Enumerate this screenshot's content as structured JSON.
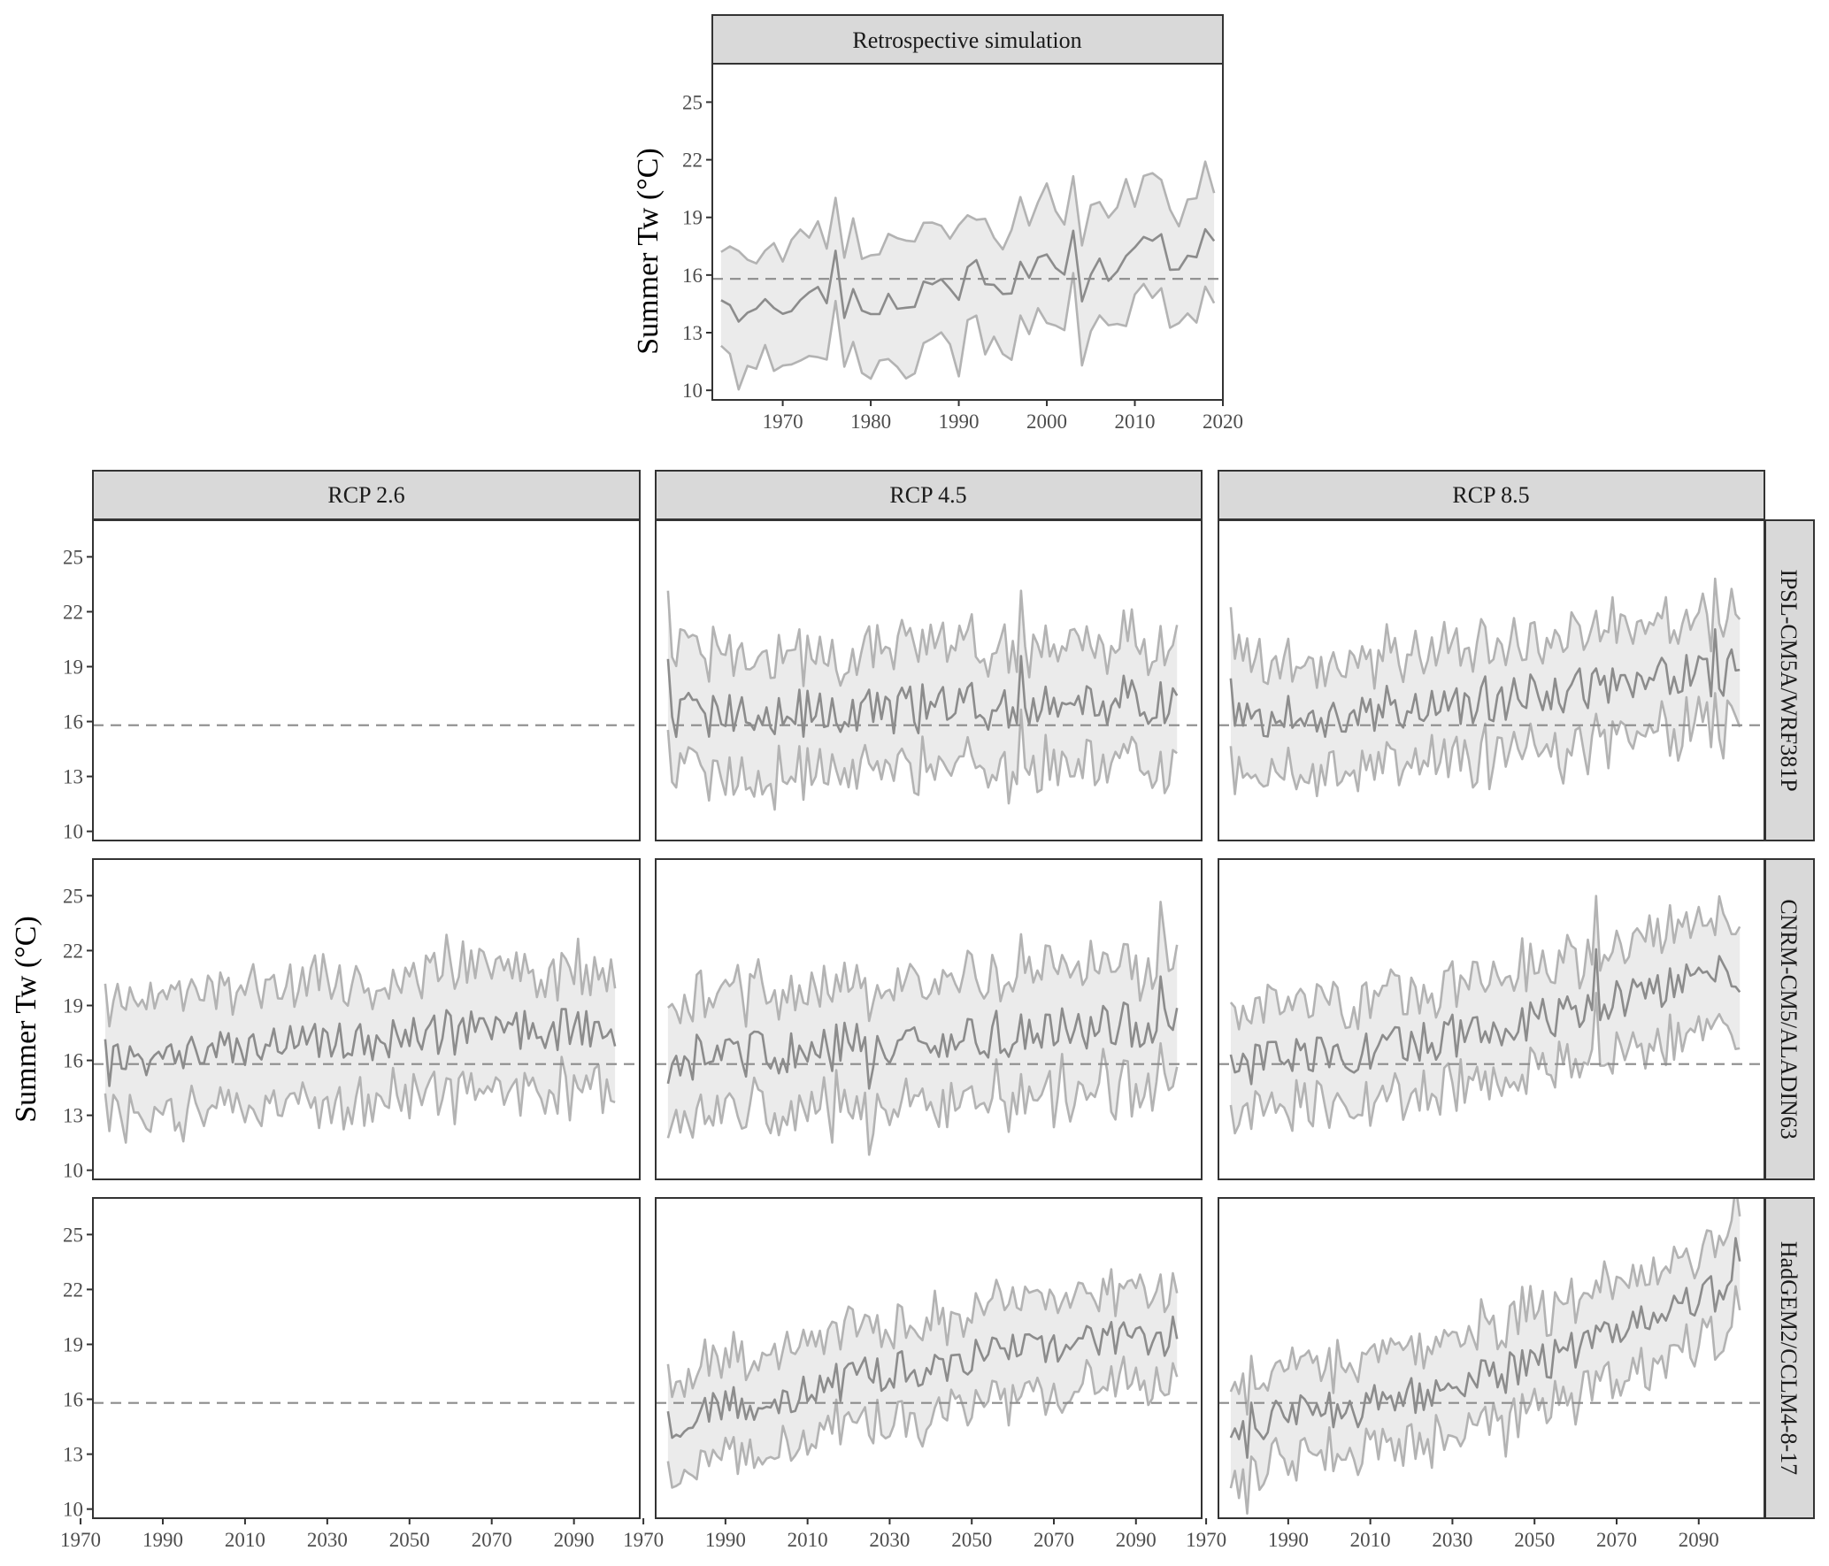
{
  "colors": {
    "ribbon_fill": "#ebebeb",
    "bound_line": "#b3b3b3",
    "mean_line": "#8c8c8c",
    "reference_line": "#8c8c8c",
    "strip_fill": "#d9d9d9",
    "panel_border": "#333333"
  },
  "chart_data": [
    {
      "type": "area",
      "panel": "Retrospective simulation",
      "title": "Retrospective simulation",
      "xlabel": "",
      "ylabel": "Summer Tw (°C)",
      "xlim": [
        1962,
        2020
      ],
      "ylim": [
        9.5,
        27
      ],
      "xticks": [
        1970,
        1980,
        1990,
        2000,
        2010,
        2020
      ],
      "yticks": [
        10,
        13,
        16,
        19,
        22,
        25
      ],
      "grid": false,
      "reference_line": 15.8,
      "x_start": 1963,
      "x_end": 2019,
      "mean_start": 13.8,
      "mean_end": 17.5,
      "mean_curve": 0,
      "spread": 3.0,
      "amp": 1.1,
      "seed": 11,
      "spikes": [
        [
          1976,
          2.6
        ],
        [
          1977,
          -1.8
        ],
        [
          2003,
          2.4
        ],
        [
          2004,
          -1.2
        ]
      ]
    },
    {
      "type": "area",
      "panel": "RCP 2.6",
      "title": "RCP 2.6",
      "row_label": "IPSL-CM5A/WRF381P",
      "xlabel": "",
      "ylabel": "",
      "xlim": [
        1973,
        2106
      ],
      "ylim": [
        9.5,
        27
      ],
      "xticks": [
        1970,
        1990,
        2010,
        2030,
        2050,
        2070,
        2090
      ],
      "yticks": [
        10,
        13,
        16,
        19,
        22,
        25
      ],
      "grid": false,
      "reference_line": 15.8,
      "empty": true
    },
    {
      "type": "area",
      "panel": "RCP 4.5",
      "title": "RCP 4.5",
      "row_label": "IPSL-CM5A/WRF381P",
      "xlim": [
        1973,
        2106
      ],
      "ylim": [
        9.5,
        27
      ],
      "xticks": [
        1970,
        1990,
        2010,
        2030,
        2050,
        2070,
        2090
      ],
      "yticks": [
        10,
        13,
        16,
        19,
        22,
        25
      ],
      "grid": false,
      "reference_line": 15.8,
      "x_start": 1976,
      "x_end": 2100,
      "mean_start": 16.2,
      "mean_end": 17.3,
      "mean_curve": 0,
      "spread": 3.3,
      "amp": 1.4,
      "seed": 23,
      "spikes": [
        [
          1976,
          2.0
        ],
        [
          2043,
          2.0
        ],
        [
          2062,
          1.5
        ]
      ]
    },
    {
      "type": "area",
      "panel": "RCP 8.5",
      "title": "RCP 8.5",
      "row_label": "IPSL-CM5A/WRF381P",
      "xlim": [
        1973,
        2106
      ],
      "ylim": [
        9.5,
        27
      ],
      "xticks": [
        1970,
        1990,
        2010,
        2030,
        2050,
        2070,
        2090
      ],
      "yticks": [
        10,
        13,
        16,
        19,
        22,
        25
      ],
      "grid": false,
      "reference_line": 15.8,
      "x_start": 1976,
      "x_end": 2100,
      "mean_start": 16.0,
      "mean_end": 18.8,
      "mean_curve": 0.3,
      "spread": 3.0,
      "amp": 1.3,
      "seed": 37,
      "spikes": [
        [
          1976,
          2.0
        ],
        [
          2094,
          2.6
        ],
        [
          2095,
          -1.5
        ]
      ]
    },
    {
      "type": "area",
      "panel": "RCP 2.6",
      "row_label": "CNRM-CM5/ALADIN63",
      "xlim": [
        1973,
        2106
      ],
      "ylim": [
        9.5,
        27
      ],
      "xticks": [
        1970,
        1990,
        2010,
        2030,
        2050,
        2070,
        2090
      ],
      "yticks": [
        10,
        13,
        16,
        19,
        22,
        25
      ],
      "grid": false,
      "reference_line": 15.8,
      "x_start": 1976,
      "x_end": 2100,
      "mean_start": 16.0,
      "mean_end": 17.8,
      "mean_curve": -0.5,
      "spread": 3.2,
      "amp": 1.2,
      "seed": 41,
      "spikes": [
        [
          1977,
          -1.8
        ],
        [
          2059,
          2.0
        ]
      ]
    },
    {
      "type": "area",
      "panel": "RCP 4.5",
      "row_label": "CNRM-CM5/ALADIN63",
      "xlim": [
        1973,
        2106
      ],
      "ylim": [
        9.5,
        27
      ],
      "xticks": [
        1970,
        1990,
        2010,
        2030,
        2050,
        2070,
        2090
      ],
      "yticks": [
        10,
        13,
        16,
        19,
        22,
        25
      ],
      "grid": false,
      "reference_line": 15.8,
      "x_start": 1976,
      "x_end": 2100,
      "mean_start": 16.0,
      "mean_end": 18.2,
      "mean_curve": 0,
      "spread": 3.3,
      "amp": 1.3,
      "seed": 53,
      "spikes": [
        [
          2025,
          -2.5
        ],
        [
          2096,
          2.4
        ]
      ]
    },
    {
      "type": "area",
      "panel": "RCP 8.5",
      "row_label": "CNRM-CM5/ALADIN63",
      "xlim": [
        1973,
        2106
      ],
      "ylim": [
        9.5,
        27
      ],
      "xticks": [
        1970,
        1990,
        2010,
        2030,
        2050,
        2070,
        2090
      ],
      "yticks": [
        10,
        13,
        16,
        19,
        22,
        25
      ],
      "grid": false,
      "reference_line": 15.8,
      "x_start": 1976,
      "x_end": 2100,
      "mean_start": 15.8,
      "mean_end": 21.0,
      "mean_curve": 0.6,
      "spread": 2.9,
      "amp": 1.2,
      "seed": 67,
      "spikes": [
        [
          2065,
          3.0
        ],
        [
          2066,
          -1.6
        ],
        [
          2100,
          -1.8
        ]
      ]
    },
    {
      "type": "area",
      "panel": "RCP 2.6",
      "title": "",
      "row_label": "HadGEM2/CCLM4-8-17",
      "xlim": [
        1973,
        2106
      ],
      "ylim": [
        9.5,
        27
      ],
      "xticks": [
        1970,
        1990,
        2010,
        2030,
        2050,
        2070,
        2090
      ],
      "yticks": [
        10,
        13,
        16,
        19,
        22,
        25
      ],
      "grid": false,
      "reference_line": 15.8,
      "empty": true
    },
    {
      "type": "area",
      "panel": "RCP 4.5",
      "row_label": "HadGEM2/CCLM4-8-17",
      "xlim": [
        1973,
        2106
      ],
      "ylim": [
        9.5,
        27
      ],
      "xticks": [
        1970,
        1990,
        2010,
        2030,
        2050,
        2070,
        2090
      ],
      "yticks": [
        10,
        13,
        16,
        19,
        22,
        25
      ],
      "grid": false,
      "reference_line": 15.8,
      "x_start": 1976,
      "x_end": 2100,
      "mean_start": 14.8,
      "mean_end": 19.5,
      "mean_curve": -0.5,
      "spread": 2.6,
      "amp": 1.1,
      "seed": 79,
      "spikes": [
        [
          1980,
          -1.5
        ],
        [
          2063,
          1.8
        ]
      ]
    },
    {
      "type": "area",
      "panel": "RCP 8.5",
      "row_label": "HadGEM2/CCLM4-8-17",
      "xlim": [
        1973,
        2106
      ],
      "ylim": [
        9.5,
        27
      ],
      "xticks": [
        1970,
        1990,
        2010,
        2030,
        2050,
        2070,
        2090
      ],
      "yticks": [
        10,
        13,
        16,
        19,
        22,
        25
      ],
      "grid": false,
      "reference_line": 15.8,
      "x_start": 1976,
      "x_end": 2100,
      "mean_start": 14.8,
      "mean_end": 22.5,
      "mean_curve": 0.8,
      "spread": 2.6,
      "amp": 1.1,
      "seed": 83,
      "spikes": [
        [
          1980,
          -1.5
        ],
        [
          2099,
          1.5
        ]
      ]
    }
  ],
  "labels": {
    "y_axis_title": "Summer Tw (°C)",
    "retro_strip": "Retrospective simulation",
    "col_strips": [
      "RCP 2.6",
      "RCP 4.5",
      "RCP 8.5"
    ],
    "row_strips": [
      "IPSL-CM5A/WRF381P",
      "CNRM-CM5/ALADIN63",
      "HadGEM2/CCLM4-8-17"
    ]
  }
}
